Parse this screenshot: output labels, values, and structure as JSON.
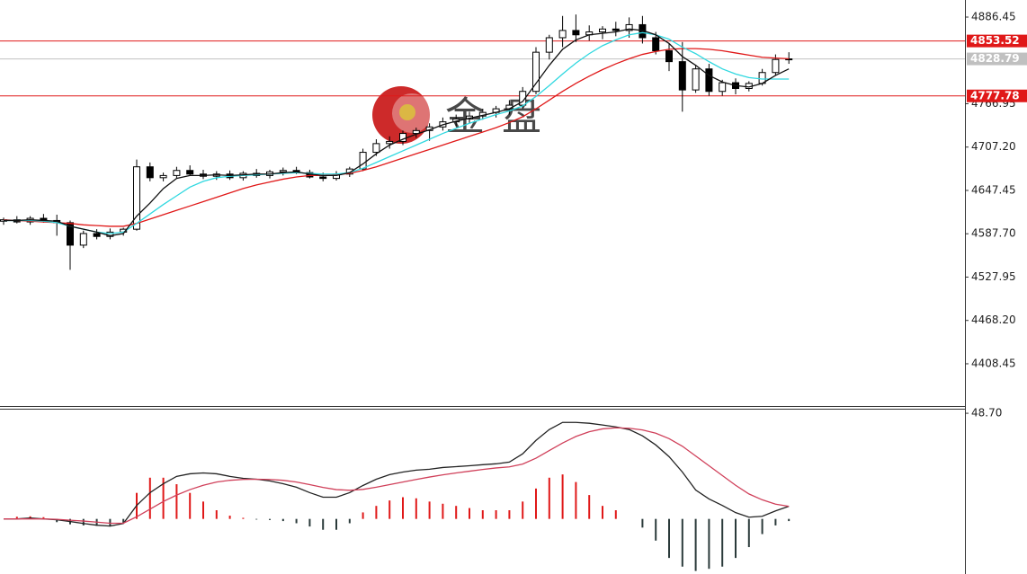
{
  "chart_data": [
    {
      "type": "candlestick",
      "open": [
        4605,
        4607,
        4604,
        4609,
        4606,
        4603,
        4572,
        4588,
        4584,
        4590,
        4594,
        4680,
        4665,
        4668,
        4675,
        4670,
        4667,
        4670,
        4665,
        4671,
        4668,
        4673,
        4675,
        4672,
        4666,
        4664,
        4670,
        4677,
        4700,
        4712,
        4715,
        4726,
        4730,
        4735,
        4742,
        4746,
        4750,
        4755,
        4760,
        4765,
        4784,
        4838,
        4858,
        4868,
        4862,
        4866,
        4870,
        4868,
        4876,
        4858,
        4840,
        4825,
        4786,
        4815,
        4784,
        4796,
        4788,
        4795,
        4810,
        4828
      ],
      "high": [
        4610,
        4612,
        4612,
        4615,
        4614,
        4606,
        4592,
        4594,
        4595,
        4596,
        4690,
        4686,
        4672,
        4680,
        4682,
        4676,
        4674,
        4675,
        4674,
        4677,
        4676,
        4679,
        4680,
        4676,
        4672,
        4674,
        4680,
        4705,
        4718,
        4722,
        4730,
        4734,
        4740,
        4748,
        4752,
        4756,
        4760,
        4764,
        4772,
        4790,
        4845,
        4862,
        4888,
        4890,
        4875,
        4874,
        4880,
        4886,
        4888,
        4866,
        4850,
        4852,
        4820,
        4822,
        4800,
        4802,
        4798,
        4815,
        4835,
        4838
      ],
      "low": [
        4600,
        4602,
        4600,
        4603,
        4585,
        4538,
        4568,
        4580,
        4580,
        4585,
        4592,
        4660,
        4660,
        4664,
        4668,
        4663,
        4662,
        4662,
        4661,
        4665,
        4664,
        4668,
        4670,
        4664,
        4660,
        4661,
        4666,
        4674,
        4695,
        4705,
        4710,
        4720,
        4716,
        4730,
        4736,
        4740,
        4745,
        4748,
        4752,
        4760,
        4780,
        4828,
        4845,
        4852,
        4854,
        4856,
        4860,
        4858,
        4850,
        4835,
        4812,
        4756,
        4782,
        4778,
        4778,
        4780,
        4784,
        4792,
        4806,
        4822
      ],
      "close": [
        4607,
        4604,
        4609,
        4606,
        4603,
        4572,
        4588,
        4584,
        4590,
        4594,
        4680,
        4665,
        4668,
        4675,
        4670,
        4667,
        4670,
        4665,
        4671,
        4668,
        4673,
        4675,
        4672,
        4666,
        4664,
        4670,
        4677,
        4700,
        4712,
        4715,
        4726,
        4730,
        4735,
        4742,
        4746,
        4750,
        4755,
        4760,
        4765,
        4784,
        4838,
        4858,
        4868,
        4862,
        4866,
        4870,
        4868,
        4876,
        4858,
        4840,
        4825,
        4786,
        4815,
        4784,
        4796,
        4788,
        4795,
        4810,
        4828,
        4828.79
      ],
      "series": [
        {
          "color": "#e01818",
          "values": [
            4607,
            4606,
            4605,
            4604,
            4603,
            4602,
            4600,
            4599,
            4598,
            4598,
            4602,
            4608,
            4614,
            4620,
            4626,
            4632,
            4638,
            4644,
            4650,
            4655,
            4659,
            4663,
            4666,
            4668,
            4668,
            4669,
            4671,
            4675,
            4680,
            4686,
            4692,
            4698,
            4704,
            4710,
            4716,
            4722,
            4728,
            4734,
            4741,
            4749,
            4760,
            4772,
            4784,
            4795,
            4805,
            4814,
            4822,
            4829,
            4835,
            4839,
            4842,
            4843,
            4843,
            4842,
            4840,
            4837,
            4834,
            4831,
            4830,
            4829
          ]
        },
        {
          "color": "#30d8e0",
          "values": [
            4606,
            4606,
            4606,
            4605,
            4603,
            4598,
            4594,
            4590,
            4588,
            4590,
            4602,
            4615,
            4628,
            4640,
            4652,
            4660,
            4665,
            4667,
            4668,
            4669,
            4670,
            4671,
            4672,
            4671,
            4670,
            4670,
            4672,
            4678,
            4686,
            4694,
            4702,
            4710,
            4718,
            4726,
            4733,
            4740,
            4746,
            4752,
            4757,
            4764,
            4777,
            4792,
            4808,
            4823,
            4836,
            4847,
            4855,
            4862,
            4865,
            4862,
            4856,
            4845,
            4836,
            4825,
            4815,
            4808,
            4803,
            4801,
            4801,
            4801
          ]
        },
        {
          "color": "#111111",
          "values": [
            4606,
            4606,
            4607,
            4606,
            4605,
            4598,
            4594,
            4590,
            4585,
            4588,
            4612,
            4630,
            4650,
            4664,
            4668,
            4668,
            4669,
            4668,
            4669,
            4670,
            4670,
            4672,
            4673,
            4670,
            4668,
            4668,
            4672,
            4684,
            4698,
            4710,
            4718,
            4725,
            4731,
            4738,
            4743,
            4747,
            4751,
            4755,
            4760,
            4770,
            4795,
            4820,
            4842,
            4855,
            4862,
            4864,
            4866,
            4870,
            4868,
            4862,
            4850,
            4832,
            4820,
            4806,
            4797,
            4792,
            4790,
            4795,
            4806,
            4815
          ]
        }
      ],
      "levels": [
        {
          "value": 4853.52,
          "color": "#e01818"
        },
        {
          "value": 4828.79,
          "color": "#c0c0c0"
        },
        {
          "value": 4777.78,
          "color": "#e01818"
        }
      ],
      "ylim": [
        4350.2,
        4910
      ],
      "yticks": [
        4886.45,
        4766.95,
        {
          "value": 4707.2,
          "label": "4707.20"
        },
        4647.45,
        {
          "value": 4587.7,
          "label": "4587.70"
        },
        4527.95,
        {
          "value": 4468.2,
          "label": "4468.20"
        },
        4408.45
      ],
      "watermark": [
        "金",
        "盘"
      ]
    },
    {
      "type": "macd",
      "histogram": [
        0,
        1.0,
        1.2,
        0.8,
        -1.5,
        -2.5,
        -3,
        -3.2,
        -3.5,
        -2,
        12,
        19,
        19,
        16,
        12,
        8,
        4,
        1.5,
        0.5,
        -0.3,
        -0.5,
        -1,
        -2,
        -3.5,
        -5,
        -5,
        -2,
        3,
        6,
        8.5,
        10,
        9.5,
        8,
        7,
        6,
        5,
        4,
        4,
        4,
        8,
        14,
        19,
        20.5,
        17,
        11,
        6,
        4,
        0,
        -4,
        -10,
        -18,
        -22,
        -24,
        -23,
        -22,
        -18,
        -13,
        -7,
        -3,
        -1
      ],
      "series": [
        {
          "color": "#222222",
          "values": [
            0,
            0,
            0.4,
            0,
            -0.4,
            -1.2,
            -2.1,
            -2.9,
            -3.3,
            -2.1,
            6.2,
            12.1,
            16.2,
            19.6,
            20.8,
            21.2,
            20.8,
            19.6,
            18.7,
            18.3,
            17.5,
            16.2,
            14.6,
            12.1,
            10.0,
            10.0,
            12.1,
            15.4,
            18.3,
            20.4,
            21.6,
            22.5,
            22.9,
            23.7,
            24.1,
            24.5,
            25.0,
            25.4,
            26.2,
            30.0,
            36.2,
            41.2,
            44.5,
            44.5,
            44.1,
            43.3,
            42.4,
            41.2,
            38.3,
            34.1,
            28.7,
            21.6,
            13.3,
            9.2,
            6.2,
            2.9,
            0.8,
            1.2,
            3.7,
            5.8
          ]
        },
        {
          "color": "#d0405a",
          "values": [
            0,
            0,
            0,
            0,
            -0.2,
            -0.6,
            -1.0,
            -1.5,
            -2.0,
            -2.0,
            1.0,
            4.5,
            8.0,
            11.0,
            13.5,
            15.5,
            17.0,
            17.8,
            18.2,
            18.3,
            18.2,
            17.8,
            17.0,
            15.8,
            14.5,
            13.5,
            13.2,
            13.6,
            14.6,
            15.8,
            17.0,
            18.2,
            19.3,
            20.3,
            21.2,
            22.0,
            22.8,
            23.5,
            24.0,
            25.3,
            28.0,
            31.5,
            35.0,
            38.0,
            40.2,
            41.5,
            42.0,
            41.8,
            41.0,
            39.5,
            37.0,
            33.5,
            29.0,
            24.5,
            20.0,
            15.5,
            11.5,
            8.8,
            6.8,
            5.8
          ]
        }
      ],
      "colors": {
        "positive": "#e01818",
        "negative": "#2a3a3a"
      },
      "ylim": [
        -25.4,
        50.8
      ],
      "yticks": [
        {
          "value": 48.7,
          "label": "48.70"
        }
      ]
    }
  ]
}
